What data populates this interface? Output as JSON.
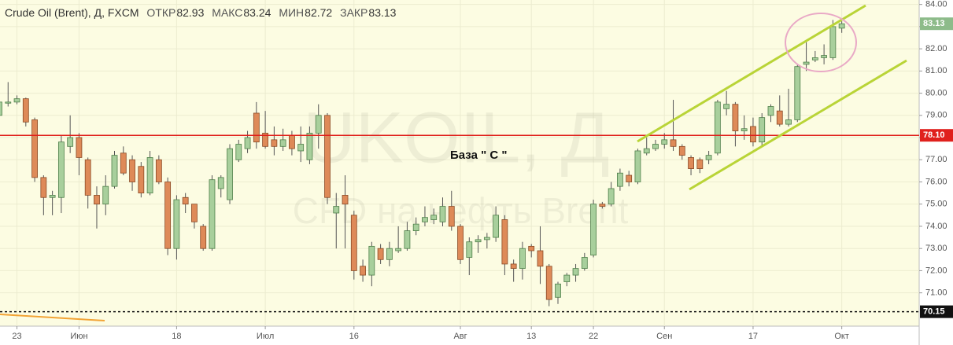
{
  "header": {
    "title": "Crude Oil (Brent), Д, FXCM",
    "stats": [
      {
        "label": "ОТКР",
        "value": 82.93
      },
      {
        "label": "МАКС",
        "value": 83.24
      },
      {
        "label": "МИН",
        "value": 82.72
      },
      {
        "label": "ЗАКР",
        "value": 83.13
      }
    ]
  },
  "chart_data": {
    "type": "candlestick",
    "watermark": [
      "UKOIL, Д",
      "CFD на нефть Brent"
    ],
    "annotation": "База \" C \"",
    "categories": [
      null,
      null,
      "23",
      null,
      null,
      null,
      null,
      null,
      null,
      "Июн",
      null,
      null,
      null,
      null,
      null,
      null,
      null,
      null,
      null,
      null,
      "18",
      null,
      null,
      null,
      null,
      null,
      null,
      null,
      null,
      null,
      "Июл",
      null,
      null,
      null,
      null,
      null,
      null,
      null,
      null,
      null,
      "16",
      null,
      null,
      null,
      null,
      null,
      null,
      null,
      null,
      null,
      null,
      null,
      "Авг",
      null,
      null,
      null,
      null,
      null,
      null,
      null,
      "13",
      null,
      null,
      null,
      null,
      null,
      null,
      "22",
      null,
      null,
      null,
      null,
      null,
      null,
      null,
      "Сен",
      null,
      null,
      null,
      null,
      null,
      null,
      null,
      null,
      null,
      "17",
      null,
      null,
      null,
      null,
      null,
      null,
      null,
      null,
      null,
      "Окт"
    ],
    "open": [
      79.0,
      79.55,
      79.6,
      79.75,
      78.8,
      76.2,
      75.3,
      75.3,
      77.6,
      78.0,
      77.0,
      75.4,
      75.0,
      75.8,
      77.3,
      77.0,
      76.7,
      75.5,
      77.0,
      76.0,
      73.0,
      75.3,
      75.0,
      74.0,
      73.0,
      75.7,
      75.2,
      77.0,
      77.5,
      79.1,
      78.2,
      77.9,
      77.6,
      78.1,
      77.4,
      77.0,
      78.2,
      79.0,
      74.6,
      75.4,
      74.5,
      72.2,
      71.8,
      73.0,
      72.5,
      72.9,
      73.0,
      73.8,
      74.2,
      74.3,
      74.2,
      74.9,
      74.0,
      72.6,
      73.3,
      73.4,
      73.5,
      74.3,
      72.3,
      72.1,
      73.1,
      72.9,
      72.2,
      70.8,
      71.5,
      71.8,
      72.1,
      72.7,
      75.0,
      75.0,
      75.8,
      76.3,
      76.0,
      77.3,
      77.5,
      77.7,
      77.9,
      77.6,
      77.1,
      77.0,
      77.0,
      77.3,
      79.3,
      79.5,
      78.3,
      78.5,
      77.8,
      79.0,
      79.2,
      78.6,
      78.8,
      81.3,
      81.5,
      81.6,
      81.6,
      82.93
    ],
    "high": [
      79.8,
      80.5,
      79.9,
      79.8,
      78.9,
      76.3,
      75.6,
      78.1,
      79.0,
      78.2,
      77.1,
      75.8,
      76.3,
      77.4,
      77.6,
      77.2,
      76.9,
      77.4,
      77.2,
      76.2,
      75.4,
      75.5,
      75.0,
      74.1,
      76.3,
      76.3,
      77.7,
      77.9,
      78.3,
      79.6,
      79.2,
      78.5,
      78.4,
      78.3,
      78.5,
      78.5,
      79.5,
      79.1,
      75.5,
      76.3,
      74.7,
      72.5,
      73.3,
      73.2,
      73.3,
      74.0,
      74.2,
      74.4,
      74.9,
      74.8,
      75.3,
      75.6,
      74.1,
      73.5,
      73.6,
      73.7,
      74.9,
      74.5,
      72.5,
      73.3,
      73.2,
      74.0,
      72.3,
      71.5,
      71.9,
      72.3,
      72.8,
      75.2,
      75.1,
      76.0,
      76.6,
      76.5,
      77.5,
      78.0,
      77.9,
      78.2,
      79.7,
      77.7,
      77.2,
      77.1,
      77.4,
      79.7,
      80.1,
      79.6,
      79.0,
      78.9,
      79.1,
      79.5,
      79.9,
      80.2,
      81.3,
      82.3,
      81.9,
      82.2,
      83.3,
      83.24
    ],
    "low": [
      78.7,
      79.4,
      79.5,
      78.5,
      76.0,
      74.5,
      74.5,
      74.6,
      77.3,
      76.3,
      74.8,
      73.9,
      74.5,
      75.7,
      76.3,
      75.6,
      75.3,
      75.4,
      75.9,
      72.7,
      72.5,
      74.6,
      73.9,
      72.9,
      72.9,
      75.3,
      75.0,
      76.9,
      77.3,
      77.5,
      77.5,
      77.2,
      77.4,
      77.2,
      76.9,
      76.8,
      77.5,
      75.0,
      73.0,
      73.0,
      71.6,
      71.5,
      71.3,
      72.3,
      72.2,
      72.8,
      72.9,
      73.6,
      74.0,
      74.1,
      74.0,
      73.8,
      72.3,
      71.8,
      72.8,
      73.0,
      73.3,
      71.8,
      71.5,
      71.6,
      72.6,
      71.4,
      70.4,
      70.5,
      71.3,
      71.5,
      72.0,
      72.6,
      74.8,
      74.9,
      75.6,
      75.8,
      75.9,
      77.2,
      77.4,
      77.5,
      77.4,
      77.0,
      76.3,
      76.4,
      76.8,
      77.2,
      79.0,
      77.6,
      77.9,
      77.6,
      77.6,
      78.7,
      78.5,
      78.5,
      78.7,
      81.0,
      81.4,
      81.3,
      81.5,
      82.72
    ],
    "close": [
      79.6,
      79.6,
      79.75,
      78.7,
      76.2,
      75.3,
      75.4,
      77.8,
      78.0,
      77.1,
      75.4,
      75.0,
      75.8,
      77.2,
      76.4,
      76.0,
      75.5,
      77.1,
      76.0,
      73.0,
      75.2,
      75.0,
      74.2,
      73.0,
      76.1,
      76.2,
      77.5,
      77.7,
      78.0,
      77.8,
      77.6,
      77.6,
      77.9,
      77.5,
      77.7,
      78.2,
      79.0,
      75.3,
      74.9,
      75.0,
      72.0,
      71.8,
      73.1,
      72.5,
      73.0,
      73.0,
      73.8,
      74.1,
      74.4,
      74.5,
      74.9,
      74.0,
      72.5,
      73.3,
      73.4,
      73.5,
      74.5,
      72.3,
      72.1,
      73.0,
      72.9,
      72.2,
      70.7,
      71.4,
      71.8,
      72.1,
      72.6,
      75.0,
      74.9,
      75.7,
      76.4,
      76.0,
      77.4,
      77.5,
      77.7,
      77.9,
      77.6,
      77.2,
      76.6,
      76.6,
      77.2,
      79.6,
      79.5,
      78.3,
      78.4,
      77.8,
      78.9,
      79.4,
      78.6,
      78.8,
      81.2,
      81.4,
      81.6,
      81.7,
      83.0,
      83.13
    ],
    "colors": {
      "up": "#a8cf9c",
      "up_edge": "#4f7f4a",
      "down": "#de8a58",
      "down_edge": "#8a4a26",
      "wick": "#555555"
    },
    "ylim": [
      69.5,
      84.2
    ],
    "yticks": [
      {
        "value": 71,
        "label": "71.00"
      },
      {
        "value": 72,
        "label": "72.00"
      },
      {
        "value": 73,
        "label": "73.00"
      },
      {
        "value": 74,
        "label": "74.00"
      },
      {
        "value": 75,
        "label": "75.00"
      },
      {
        "value": 76,
        "label": "76.00"
      },
      {
        "value": 77,
        "label": "77.00"
      },
      {
        "value": 78,
        "label": "78.00"
      },
      {
        "value": 79,
        "label": "79.00"
      },
      {
        "value": 80,
        "label": "80.00"
      },
      {
        "value": 81,
        "label": "81.00"
      },
      {
        "value": 82,
        "label": "82.00"
      },
      {
        "value": 83,
        "label": "83.00"
      },
      {
        "value": 84,
        "label": "84.00"
      }
    ],
    "grid": true,
    "last_price": {
      "value": 83.13,
      "color": "#8dbb8a"
    },
    "lines": [
      {
        "value": 78.1,
        "label": "78.10",
        "color": "#e0201c",
        "style": "solid"
      },
      {
        "value": 70.15,
        "label": "70.15",
        "color": "#111111",
        "style": "dotted"
      }
    ]
  }
}
